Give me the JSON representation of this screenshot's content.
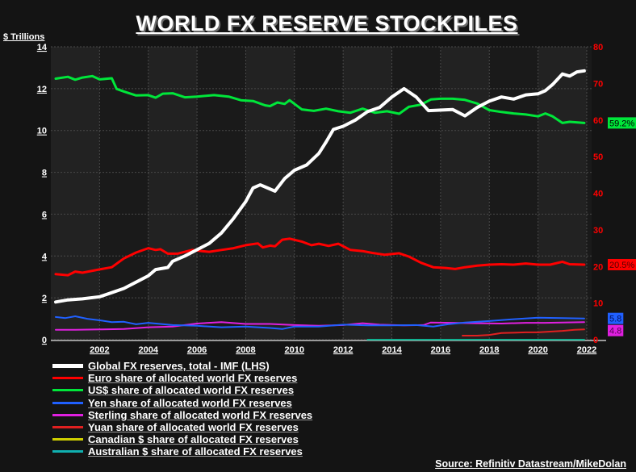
{
  "chart_data": {
    "type": "line",
    "title": "WORLD FX RESERVE STOCKPILES",
    "left_axis": {
      "label": "$ Trillions",
      "ylim": [
        0,
        14
      ],
      "ticks": [
        0,
        2,
        4,
        6,
        8,
        10,
        12,
        14
      ],
      "color": "#ffffff"
    },
    "right_axis": {
      "ylim": [
        0,
        80
      ],
      "ticks": [
        0,
        10,
        20,
        30,
        40,
        50,
        60,
        70,
        80
      ],
      "color": "#ff0000"
    },
    "x_axis": {
      "xlim": [
        2000,
        2022.3
      ],
      "ticks": [
        2002,
        2004,
        2006,
        2008,
        2010,
        2012,
        2014,
        2016,
        2018,
        2020,
        2022
      ]
    },
    "grid": true,
    "legend_placement": "bottom-left",
    "series": [
      {
        "name": "Global FX reserves, total - IMF (LHS)",
        "axis": "left",
        "color": "#ffffff",
        "width": 4,
        "points": [
          [
            2000.2,
            1.8
          ],
          [
            2000.7,
            1.9
          ],
          [
            2001.3,
            1.95
          ],
          [
            2002,
            2.05
          ],
          [
            2002.5,
            2.25
          ],
          [
            2003,
            2.45
          ],
          [
            2003.5,
            2.75
          ],
          [
            2004,
            3.05
          ],
          [
            2004.3,
            3.35
          ],
          [
            2004.8,
            3.45
          ],
          [
            2005,
            3.75
          ],
          [
            2005.5,
            4.0
          ],
          [
            2006,
            4.3
          ],
          [
            2006.5,
            4.6
          ],
          [
            2007,
            5.1
          ],
          [
            2007.5,
            5.8
          ],
          [
            2008,
            6.6
          ],
          [
            2008.3,
            7.25
          ],
          [
            2008.6,
            7.4
          ],
          [
            2009.2,
            7.1
          ],
          [
            2009.6,
            7.7
          ],
          [
            2010,
            8.1
          ],
          [
            2010.5,
            8.35
          ],
          [
            2011,
            8.9
          ],
          [
            2011.3,
            9.45
          ],
          [
            2011.6,
            10.05
          ],
          [
            2012,
            10.2
          ],
          [
            2012.5,
            10.5
          ],
          [
            2013,
            10.9
          ],
          [
            2013.5,
            11.1
          ],
          [
            2014,
            11.6
          ],
          [
            2014.5,
            12.0
          ],
          [
            2015,
            11.6
          ],
          [
            2015.5,
            10.95
          ],
          [
            2016.5,
            11.0
          ],
          [
            2017,
            10.7
          ],
          [
            2017.5,
            11.1
          ],
          [
            2018,
            11.4
          ],
          [
            2018.5,
            11.6
          ],
          [
            2019,
            11.5
          ],
          [
            2019.5,
            11.7
          ],
          [
            2020,
            11.75
          ],
          [
            2020.3,
            11.9
          ],
          [
            2020.6,
            12.2
          ],
          [
            2021,
            12.7
          ],
          [
            2021.3,
            12.6
          ],
          [
            2021.6,
            12.8
          ],
          [
            2021.9,
            12.85
          ]
        ]
      },
      {
        "name": "Euro share of allocated world FX reserves",
        "axis": "right",
        "color": "#ff0000",
        "width": 3,
        "points": [
          [
            2000.2,
            17.9
          ],
          [
            2000.7,
            17.6
          ],
          [
            2001,
            18.6
          ],
          [
            2001.3,
            18.3
          ],
          [
            2002,
            19.2
          ],
          [
            2002.5,
            19.8
          ],
          [
            2003,
            22.2
          ],
          [
            2003.5,
            23.8
          ],
          [
            2004,
            25.0
          ],
          [
            2004.3,
            24.5
          ],
          [
            2004.5,
            24.7
          ],
          [
            2004.8,
            23.5
          ],
          [
            2005.2,
            23.5
          ],
          [
            2005.8,
            24.5
          ],
          [
            2006.2,
            24.2
          ],
          [
            2006.5,
            24.0
          ],
          [
            2007,
            24.5
          ],
          [
            2007.5,
            25.0
          ],
          [
            2008,
            25.8
          ],
          [
            2008.5,
            26.3
          ],
          [
            2008.7,
            25.2
          ],
          [
            2009,
            25.7
          ],
          [
            2009.2,
            25.5
          ],
          [
            2009.5,
            27.3
          ],
          [
            2009.8,
            27.6
          ],
          [
            2010.3,
            26.8
          ],
          [
            2010.7,
            25.8
          ],
          [
            2011,
            26.2
          ],
          [
            2011.4,
            25.6
          ],
          [
            2011.8,
            26.2
          ],
          [
            2012.3,
            24.5
          ],
          [
            2012.8,
            24.2
          ],
          [
            2013.2,
            23.7
          ],
          [
            2013.7,
            23.2
          ],
          [
            2014.3,
            23.6
          ],
          [
            2014.7,
            22.7
          ],
          [
            2015.2,
            21.0
          ],
          [
            2015.7,
            19.8
          ],
          [
            2016.2,
            19.6
          ],
          [
            2016.6,
            19.3
          ],
          [
            2017,
            19.8
          ],
          [
            2017.5,
            20.2
          ],
          [
            2018,
            20.5
          ],
          [
            2018.5,
            20.6
          ],
          [
            2019,
            20.5
          ],
          [
            2019.5,
            20.8
          ],
          [
            2020,
            20.5
          ],
          [
            2020.5,
            20.5
          ],
          [
            2021,
            21.3
          ],
          [
            2021.3,
            20.6
          ],
          [
            2021.9,
            20.5
          ]
        ]
      },
      {
        "name": "US$ share of allocated world FX reserves",
        "axis": "right",
        "color": "#00e63a",
        "width": 3,
        "points": [
          [
            2000.2,
            71.3
          ],
          [
            2000.7,
            71.8
          ],
          [
            2001,
            71.0
          ],
          [
            2001.3,
            71.6
          ],
          [
            2001.7,
            72.0
          ],
          [
            2002,
            71.1
          ],
          [
            2002.5,
            71.4
          ],
          [
            2002.7,
            68.5
          ],
          [
            2003,
            67.8
          ],
          [
            2003.5,
            66.7
          ],
          [
            2004,
            66.8
          ],
          [
            2004.3,
            66.1
          ],
          [
            2004.6,
            67.2
          ],
          [
            2005,
            67.3
          ],
          [
            2005.5,
            66.2
          ],
          [
            2006,
            66.4
          ],
          [
            2006.7,
            66.8
          ],
          [
            2007.3,
            66.4
          ],
          [
            2007.8,
            65.4
          ],
          [
            2008.3,
            65.2
          ],
          [
            2008.8,
            64.0
          ],
          [
            2009,
            63.8
          ],
          [
            2009.3,
            64.8
          ],
          [
            2009.6,
            64.4
          ],
          [
            2009.8,
            65.4
          ],
          [
            2010.3,
            62.9
          ],
          [
            2010.8,
            62.5
          ],
          [
            2011.3,
            63.1
          ],
          [
            2011.8,
            62.4
          ],
          [
            2012.3,
            62.0
          ],
          [
            2012.8,
            63.1
          ],
          [
            2013.3,
            62.0
          ],
          [
            2013.8,
            62.4
          ],
          [
            2014.3,
            61.7
          ],
          [
            2014.7,
            63.6
          ],
          [
            2015.2,
            64.2
          ],
          [
            2015.6,
            65.6
          ],
          [
            2016,
            65.8
          ],
          [
            2016.5,
            65.8
          ],
          [
            2017,
            65.5
          ],
          [
            2017.5,
            64.5
          ],
          [
            2018,
            62.7
          ],
          [
            2018.5,
            62.2
          ],
          [
            2019,
            61.8
          ],
          [
            2019.5,
            61.5
          ],
          [
            2020,
            61.0
          ],
          [
            2020.3,
            61.8
          ],
          [
            2020.6,
            61.0
          ],
          [
            2021,
            59.2
          ],
          [
            2021.3,
            59.5
          ],
          [
            2021.9,
            59.2
          ]
        ]
      },
      {
        "name": "Yen share of allocated world FX reserves",
        "axis": "right",
        "color": "#2060ff",
        "width": 2,
        "points": [
          [
            2000.2,
            6.2
          ],
          [
            2000.6,
            5.9
          ],
          [
            2001,
            6.4
          ],
          [
            2001.5,
            5.7
          ],
          [
            2002,
            5.3
          ],
          [
            2002.5,
            4.8
          ],
          [
            2003,
            4.9
          ],
          [
            2003.5,
            4.2
          ],
          [
            2004,
            4.6
          ],
          [
            2005,
            4.0
          ],
          [
            2006,
            3.8
          ],
          [
            2007,
            3.4
          ],
          [
            2008,
            3.6
          ],
          [
            2009,
            3.2
          ],
          [
            2009.5,
            2.9
          ],
          [
            2010,
            3.6
          ],
          [
            2011,
            3.6
          ],
          [
            2012,
            4.1
          ],
          [
            2013,
            3.9
          ],
          [
            2014,
            3.9
          ],
          [
            2015,
            4.0
          ],
          [
            2015.7,
            3.6
          ],
          [
            2016.3,
            4.2
          ],
          [
            2017,
            4.7
          ],
          [
            2018,
            5.1
          ],
          [
            2019,
            5.6
          ],
          [
            2020,
            6.0
          ],
          [
            2021,
            5.9
          ],
          [
            2021.9,
            5.8
          ]
        ]
      },
      {
        "name": "Sterling share of allocated world FX reserves",
        "axis": "right",
        "color": "#e020e0",
        "width": 2,
        "points": [
          [
            2000.2,
            2.7
          ],
          [
            2001,
            2.7
          ],
          [
            2002,
            2.8
          ],
          [
            2003,
            2.9
          ],
          [
            2004,
            3.4
          ],
          [
            2005,
            3.6
          ],
          [
            2006,
            4.4
          ],
          [
            2007,
            4.8
          ],
          [
            2008,
            4.3
          ],
          [
            2009,
            4.3
          ],
          [
            2010,
            4.0
          ],
          [
            2011,
            3.8
          ],
          [
            2012,
            4.0
          ],
          [
            2012.8,
            4.5
          ],
          [
            2013.5,
            4.1
          ],
          [
            2014.5,
            3.9
          ],
          [
            2015.3,
            4.0
          ],
          [
            2015.6,
            4.7
          ],
          [
            2016.5,
            4.6
          ],
          [
            2017.5,
            4.5
          ],
          [
            2018.5,
            4.4
          ],
          [
            2019.5,
            4.6
          ],
          [
            2020.3,
            4.6
          ],
          [
            2021,
            4.7
          ],
          [
            2021.9,
            4.8
          ]
        ]
      },
      {
        "name": "Yuan share of allocated world FX reserves",
        "axis": "right",
        "color": "#e02020",
        "width": 2,
        "points": [
          [
            2016.9,
            1.1
          ],
          [
            2017.5,
            1.1
          ],
          [
            2018,
            1.3
          ],
          [
            2018.5,
            1.8
          ],
          [
            2019,
            1.9
          ],
          [
            2019.5,
            2.0
          ],
          [
            2020,
            2.0
          ],
          [
            2020.5,
            2.2
          ],
          [
            2021,
            2.4
          ],
          [
            2021.5,
            2.7
          ],
          [
            2021.9,
            2.8
          ]
        ]
      },
      {
        "name": "Canadian $ share of allocated FX reserves",
        "axis": "right",
        "color": "#d0d000",
        "width": 2,
        "points": []
      },
      {
        "name": "Australian $ share of allocated FX reserves",
        "axis": "right",
        "color": "#10b090",
        "width": 2,
        "points": [
          [
            2013,
            0
          ],
          [
            2021.9,
            0
          ]
        ]
      }
    ],
    "end_labels": [
      {
        "text": "59.2%",
        "bg": "#00e63a",
        "fg": "#000000",
        "value": 59.2
      },
      {
        "text": "20.5%",
        "bg": "#ff0000",
        "fg": "#550000",
        "value": 20.5
      },
      {
        "text": "5.8",
        "bg": "#2060ff",
        "fg": "#001060",
        "value": 5.8
      },
      {
        "text": "4.8",
        "bg": "#e020e0",
        "fg": "#500050",
        "value": 4.8
      }
    ]
  },
  "source": "Source: Refinitiv Datastream/MikeDolan"
}
